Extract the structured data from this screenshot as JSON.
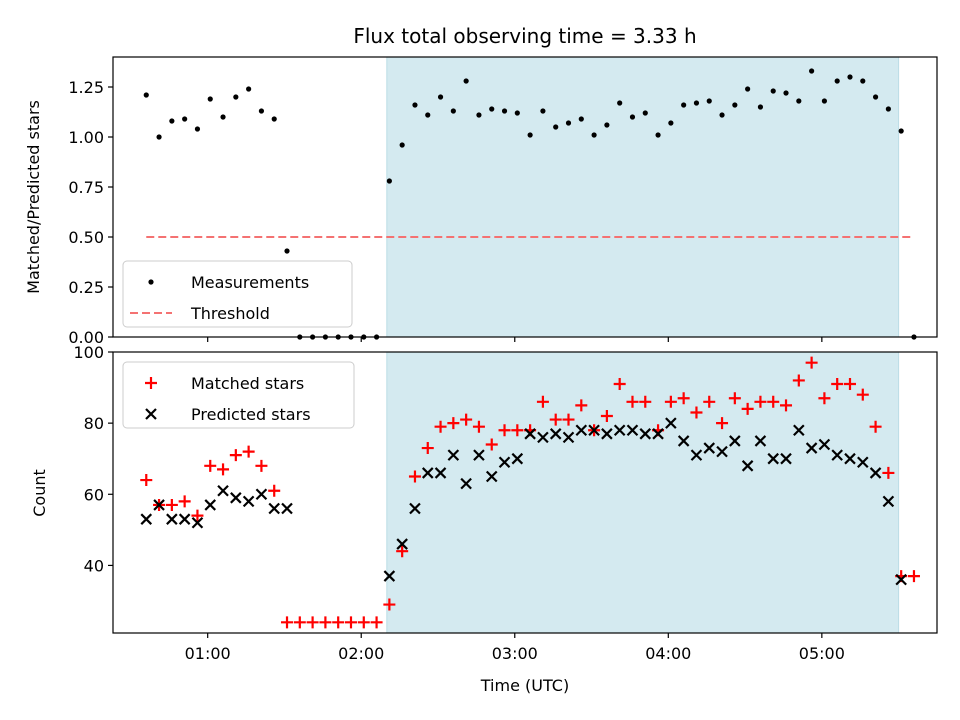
{
  "chart_data": [
    {
      "type": "scatter",
      "title": "Flux total observing time = 3.33 h",
      "ylabel": "Matched/Predicted stars",
      "xlabel": "",
      "xlim": [
        "00:23",
        "05:45"
      ],
      "ylim": [
        0,
        1.4
      ],
      "yticks": [
        "0.00",
        "0.25",
        "0.50",
        "0.75",
        "1.00",
        "1.25"
      ],
      "grid": false,
      "legend": "lower-left",
      "highlight": {
        "start": "02:10",
        "end": "05:30",
        "color": "#d4eaf0"
      },
      "series": [
        {
          "name": "Measurements",
          "marker": "dot",
          "color": "#000000",
          "points": [
            [
              "00:36",
              1.21
            ],
            [
              "00:41",
              1.0
            ],
            [
              "00:46",
              1.08
            ],
            [
              "00:51",
              1.09
            ],
            [
              "00:56",
              1.04
            ],
            [
              "01:01",
              1.19
            ],
            [
              "01:06",
              1.1
            ],
            [
              "01:11",
              1.2
            ],
            [
              "01:16",
              1.24
            ],
            [
              "01:21",
              1.13
            ],
            [
              "01:26",
              1.09
            ],
            [
              "01:31",
              0.43
            ],
            [
              "01:36",
              0.0
            ],
            [
              "01:41",
              0.0
            ],
            [
              "01:46",
              0.0
            ],
            [
              "01:51",
              0.0
            ],
            [
              "01:56",
              0.0
            ],
            [
              "02:01",
              0.0
            ],
            [
              "02:06",
              0.0
            ],
            [
              "02:11",
              0.78
            ],
            [
              "02:16",
              0.96
            ],
            [
              "02:21",
              1.16
            ],
            [
              "02:26",
              1.11
            ],
            [
              "02:31",
              1.2
            ],
            [
              "02:36",
              1.13
            ],
            [
              "02:41",
              1.28
            ],
            [
              "02:46",
              1.11
            ],
            [
              "02:51",
              1.14
            ],
            [
              "02:56",
              1.13
            ],
            [
              "03:01",
              1.12
            ],
            [
              "03:06",
              1.01
            ],
            [
              "03:11",
              1.13
            ],
            [
              "03:16",
              1.05
            ],
            [
              "03:21",
              1.07
            ],
            [
              "03:26",
              1.09
            ],
            [
              "03:31",
              1.01
            ],
            [
              "03:36",
              1.06
            ],
            [
              "03:41",
              1.17
            ],
            [
              "03:46",
              1.1
            ],
            [
              "03:51",
              1.12
            ],
            [
              "03:56",
              1.01
            ],
            [
              "04:01",
              1.07
            ],
            [
              "04:06",
              1.16
            ],
            [
              "04:11",
              1.17
            ],
            [
              "04:16",
              1.18
            ],
            [
              "04:21",
              1.11
            ],
            [
              "04:26",
              1.16
            ],
            [
              "04:31",
              1.24
            ],
            [
              "04:36",
              1.15
            ],
            [
              "04:41",
              1.23
            ],
            [
              "04:46",
              1.22
            ],
            [
              "04:51",
              1.18
            ],
            [
              "04:56",
              1.33
            ],
            [
              "05:01",
              1.18
            ],
            [
              "05:06",
              1.28
            ],
            [
              "05:11",
              1.3
            ],
            [
              "05:16",
              1.28
            ],
            [
              "05:21",
              1.2
            ],
            [
              "05:26",
              1.14
            ],
            [
              "05:31",
              1.03
            ],
            [
              "05:36",
              0.0
            ]
          ]
        },
        {
          "name": "Threshold",
          "marker": "dashed-line",
          "color": "#f47272",
          "points": [
            [
              "00:36",
              0.5
            ],
            [
              "05:36",
              0.5
            ]
          ]
        }
      ]
    },
    {
      "type": "scatter",
      "title": "",
      "ylabel": "Count",
      "xlabel": "Time (UTC)",
      "xlim": [
        "00:23",
        "05:45"
      ],
      "ylim": [
        21,
        100
      ],
      "xticks": [
        "01:00",
        "02:00",
        "03:00",
        "04:00",
        "05:00"
      ],
      "yticks": [
        "40",
        "60",
        "80",
        "100"
      ],
      "grid": false,
      "legend": "upper-left",
      "highlight": {
        "start": "02:10",
        "end": "05:30",
        "color": "#d4eaf0"
      },
      "series": [
        {
          "name": "Matched stars",
          "marker": "plus",
          "color": "#ff0000",
          "points": [
            [
              "00:36",
              64
            ],
            [
              "00:41",
              57
            ],
            [
              "00:46",
              57
            ],
            [
              "00:51",
              58
            ],
            [
              "00:56",
              54
            ],
            [
              "01:01",
              68
            ],
            [
              "01:06",
              67
            ],
            [
              "01:11",
              71
            ],
            [
              "01:16",
              72
            ],
            [
              "01:21",
              68
            ],
            [
              "01:26",
              61
            ],
            [
              "01:31",
              24
            ],
            [
              "01:36",
              24
            ],
            [
              "01:41",
              24
            ],
            [
              "01:46",
              24
            ],
            [
              "01:51",
              24
            ],
            [
              "01:56",
              24
            ],
            [
              "02:01",
              24
            ],
            [
              "02:06",
              24
            ],
            [
              "02:11",
              29
            ],
            [
              "02:16",
              44
            ],
            [
              "02:21",
              65
            ],
            [
              "02:26",
              73
            ],
            [
              "02:31",
              79
            ],
            [
              "02:36",
              80
            ],
            [
              "02:41",
              81
            ],
            [
              "02:46",
              79
            ],
            [
              "02:51",
              74
            ],
            [
              "02:56",
              78
            ],
            [
              "03:01",
              78
            ],
            [
              "03:06",
              78
            ],
            [
              "03:11",
              86
            ],
            [
              "03:16",
              81
            ],
            [
              "03:21",
              81
            ],
            [
              "03:26",
              85
            ],
            [
              "03:31",
              78
            ],
            [
              "03:36",
              82
            ],
            [
              "03:41",
              91
            ],
            [
              "03:46",
              86
            ],
            [
              "03:51",
              86
            ],
            [
              "03:56",
              78
            ],
            [
              "04:01",
              86
            ],
            [
              "04:06",
              87
            ],
            [
              "04:11",
              83
            ],
            [
              "04:16",
              86
            ],
            [
              "04:21",
              80
            ],
            [
              "04:26",
              87
            ],
            [
              "04:31",
              84
            ],
            [
              "04:36",
              86
            ],
            [
              "04:41",
              86
            ],
            [
              "04:46",
              85
            ],
            [
              "04:51",
              92
            ],
            [
              "04:56",
              97
            ],
            [
              "05:01",
              87
            ],
            [
              "05:06",
              91
            ],
            [
              "05:11",
              91
            ],
            [
              "05:16",
              88
            ],
            [
              "05:21",
              79
            ],
            [
              "05:26",
              66
            ],
            [
              "05:31",
              37
            ],
            [
              "05:36",
              37
            ]
          ]
        },
        {
          "name": "Predicted stars",
          "marker": "x",
          "color": "#000000",
          "points": [
            [
              "00:36",
              53
            ],
            [
              "00:41",
              57
            ],
            [
              "00:46",
              53
            ],
            [
              "00:51",
              53
            ],
            [
              "00:56",
              52
            ],
            [
              "01:01",
              57
            ],
            [
              "01:06",
              61
            ],
            [
              "01:11",
              59
            ],
            [
              "01:16",
              58
            ],
            [
              "01:21",
              60
            ],
            [
              "01:26",
              56
            ],
            [
              "01:31",
              56
            ],
            [
              "02:11",
              37
            ],
            [
              "02:16",
              46
            ],
            [
              "02:21",
              56
            ],
            [
              "02:26",
              66
            ],
            [
              "02:31",
              66
            ],
            [
              "02:36",
              71
            ],
            [
              "02:41",
              63
            ],
            [
              "02:46",
              71
            ],
            [
              "02:51",
              65
            ],
            [
              "02:56",
              69
            ],
            [
              "03:01",
              70
            ],
            [
              "03:06",
              77
            ],
            [
              "03:11",
              76
            ],
            [
              "03:16",
              77
            ],
            [
              "03:21",
              76
            ],
            [
              "03:26",
              78
            ],
            [
              "03:31",
              78
            ],
            [
              "03:36",
              77
            ],
            [
              "03:41",
              78
            ],
            [
              "03:46",
              78
            ],
            [
              "03:51",
              77
            ],
            [
              "03:56",
              77
            ],
            [
              "04:01",
              80
            ],
            [
              "04:06",
              75
            ],
            [
              "04:11",
              71
            ],
            [
              "04:16",
              73
            ],
            [
              "04:21",
              72
            ],
            [
              "04:26",
              75
            ],
            [
              "04:31",
              68
            ],
            [
              "04:36",
              75
            ],
            [
              "04:41",
              70
            ],
            [
              "04:46",
              70
            ],
            [
              "04:51",
              78
            ],
            [
              "04:56",
              73
            ],
            [
              "05:01",
              74
            ],
            [
              "05:06",
              71
            ],
            [
              "05:11",
              70
            ],
            [
              "05:16",
              69
            ],
            [
              "05:21",
              66
            ],
            [
              "05:26",
              58
            ],
            [
              "05:31",
              36
            ]
          ]
        }
      ]
    }
  ]
}
